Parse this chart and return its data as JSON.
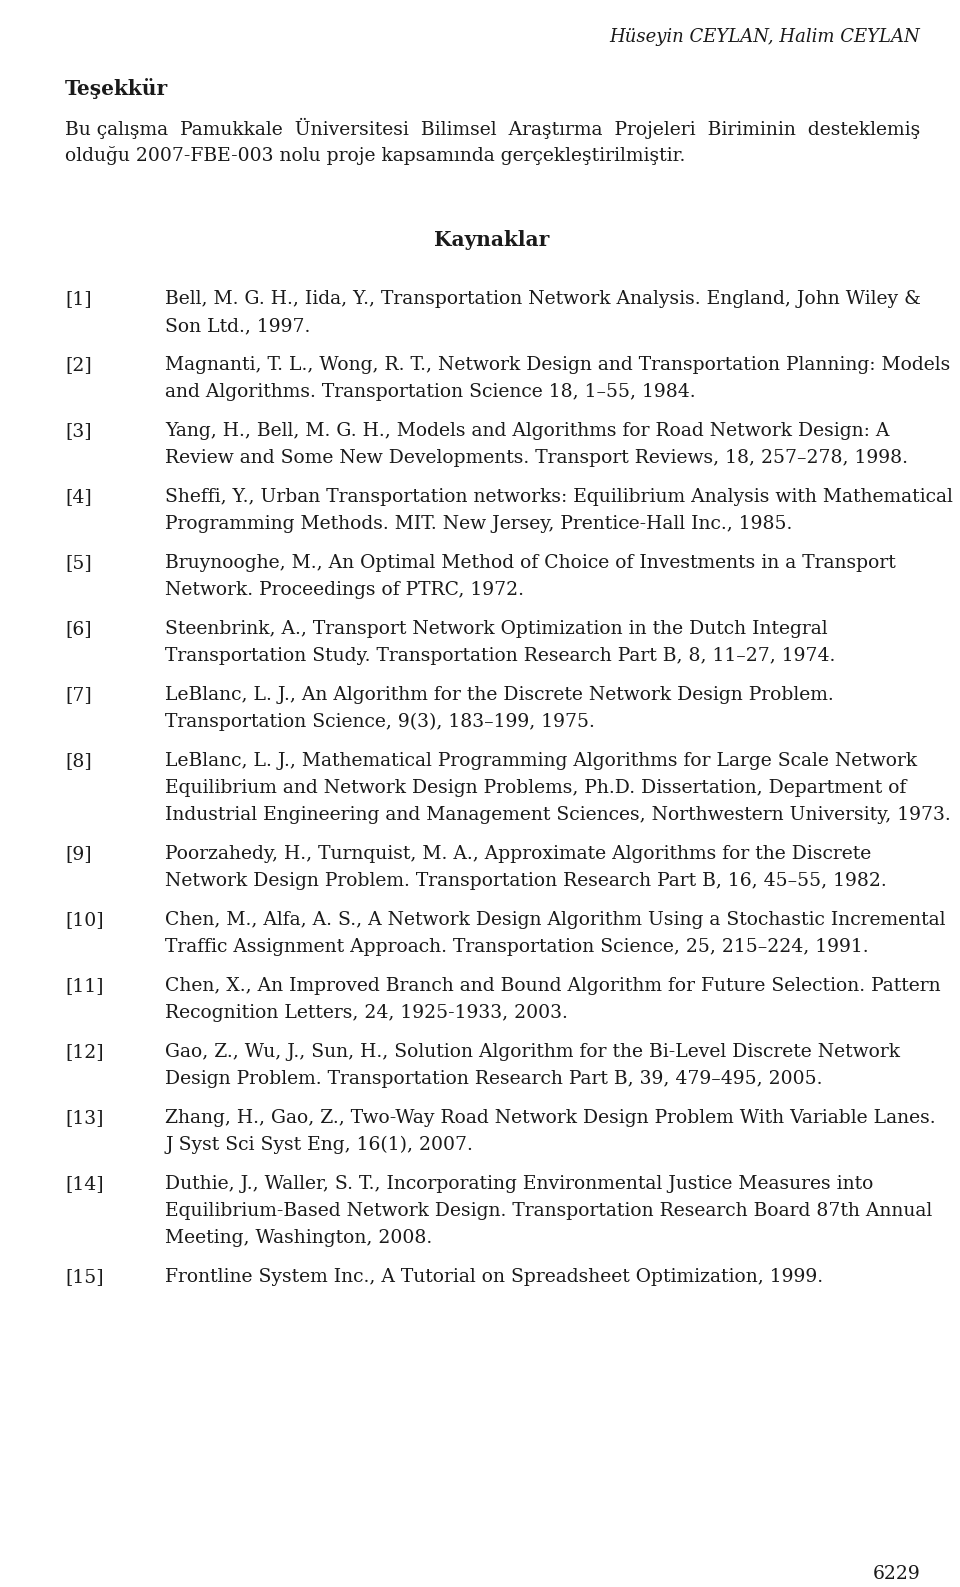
{
  "header_italic": "Hüseyin CEYLAN, Halim CEYLAN",
  "section_title": "Teşekkür",
  "tesekkur_lines": [
    "Bu çalışma  Pamukkale  Üniversitesi  Bilimsel  Araştırma  Projeleri  Biriminin  desteklemiş",
    "olduğu 2007-FBE-003 nolu proje kapsamında gerçekleştirilmiştir."
  ],
  "kaynaklar_title": "Kaynaklar",
  "references": [
    [
      "[1]",
      [
        "Bell, M. G. H., Iida, Y., Transportation Network Analysis. England, John Wiley &",
        "Son Ltd., 1997."
      ]
    ],
    [
      "[2]",
      [
        "Magnanti, T. L., Wong, R. T., Network Design and Transportation Planning: Models",
        "and Algorithms. Transportation Science 18, 1–55, 1984."
      ]
    ],
    [
      "[3]",
      [
        "Yang, H., Bell, M. G. H., Models and Algorithms for Road Network Design: A",
        "Review and Some New Developments. Transport Reviews, 18, 257–278, 1998."
      ]
    ],
    [
      "[4]",
      [
        "Sheffi, Y., Urban Transportation networks: Equilibrium Analysis with Mathematical",
        "Programming Methods. MIT. New Jersey, Prentice-Hall Inc., 1985."
      ]
    ],
    [
      "[5]",
      [
        "Bruynooghe, M., An Optimal Method of Choice of Investments in a Transport",
        "Network. Proceedings of PTRC, 1972."
      ]
    ],
    [
      "[6]",
      [
        "Steenbrink, A., Transport Network Optimization in the Dutch Integral",
        "Transportation Study. Transportation Research Part B, 8, 11–27, 1974."
      ]
    ],
    [
      "[7]",
      [
        "LeBlanc, L. J., An Algorithm for the Discrete Network Design Problem.",
        "Transportation Science, 9(3), 183–199, 1975."
      ]
    ],
    [
      "[8]",
      [
        "LeBlanc, L. J., Mathematical Programming Algorithms for Large Scale Network",
        "Equilibrium and Network Design Problems, Ph.D. Dissertation, Department of",
        "Industrial Engineering and Management Sciences, Northwestern University, 1973."
      ]
    ],
    [
      "[9]",
      [
        "Poorzahedy, H., Turnquist, M. A., Approximate Algorithms for the Discrete",
        "Network Design Problem. Transportation Research Part B, 16, 45–55, 1982."
      ]
    ],
    [
      "[10]",
      [
        "Chen, M., Alfa, A. S., A Network Design Algorithm Using a Stochastic Incremental",
        "Traffic Assignment Approach. Transportation Science, 25, 215–224, 1991."
      ]
    ],
    [
      "[11]",
      [
        "Chen, X., An Improved Branch and Bound Algorithm for Future Selection. Pattern",
        "Recognition Letters, 24, 1925-1933, 2003."
      ]
    ],
    [
      "[12]",
      [
        "Gao, Z., Wu, J., Sun, H., Solution Algorithm for the Bi-Level Discrete Network",
        "Design Problem. Transportation Research Part B, 39, 479–495, 2005."
      ]
    ],
    [
      "[13]",
      [
        "Zhang, H., Gao, Z., Two-Way Road Network Design Problem With Variable Lanes.",
        "J Syst Sci Syst Eng, 16(1), 2007."
      ]
    ],
    [
      "[14]",
      [
        "Duthie, J., Waller, S. T., Incorporating Environmental Justice Measures into",
        "Equilibrium-Based Network Design. Transportation Research Board 87th Annual",
        "Meeting, Washington, 2008."
      ]
    ],
    [
      "[15]",
      [
        "Frontline System Inc., A Tutorial on Spreadsheet Optimization, 1999."
      ]
    ]
  ],
  "page_number": "6229",
  "bg_color": "#ffffff",
  "text_color": "#1a1a1a"
}
